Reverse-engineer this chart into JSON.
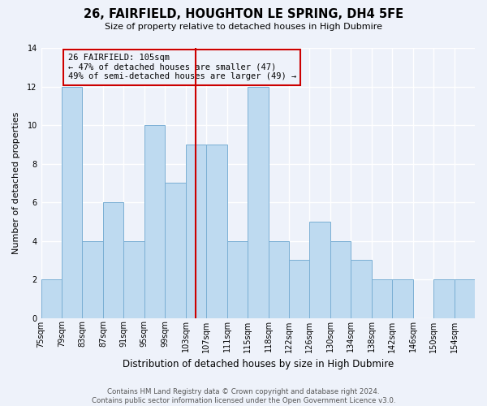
{
  "title": "26, FAIRFIELD, HOUGHTON LE SPRING, DH4 5FE",
  "subtitle": "Size of property relative to detached houses in High Dubmire",
  "xlabel": "Distribution of detached houses by size in High Dubmire",
  "ylabel": "Number of detached properties",
  "bin_labels": [
    "75sqm",
    "79sqm",
    "83sqm",
    "87sqm",
    "91sqm",
    "95sqm",
    "99sqm",
    "103sqm",
    "107sqm",
    "111sqm",
    "115sqm",
    "118sqm",
    "122sqm",
    "126sqm",
    "130sqm",
    "134sqm",
    "138sqm",
    "142sqm",
    "146sqm",
    "150sqm",
    "154sqm"
  ],
  "bar_heights": [
    2,
    12,
    4,
    6,
    4,
    10,
    7,
    9,
    9,
    4,
    12,
    4,
    3,
    5,
    4,
    3,
    2,
    2,
    0,
    2,
    2
  ],
  "bar_color": "#BEDAF0",
  "bar_edge_color": "#7AAFD4",
  "vline_bin_index": 7.5,
  "vline_color": "#CC0000",
  "annotation_title": "26 FAIRFIELD: 105sqm",
  "annotation_line1": "← 47% of detached houses are smaller (47)",
  "annotation_line2": "49% of semi-detached houses are larger (49) →",
  "annotation_box_edge": "#CC0000",
  "ylim": [
    0,
    14
  ],
  "yticks": [
    0,
    2,
    4,
    6,
    8,
    10,
    12,
    14
  ],
  "footnote": "Contains HM Land Registry data © Crown copyright and database right 2024.\nContains public sector information licensed under the Open Government Licence v3.0.",
  "background_color": "#EEF2FA",
  "grid_color": "#FFFFFF"
}
